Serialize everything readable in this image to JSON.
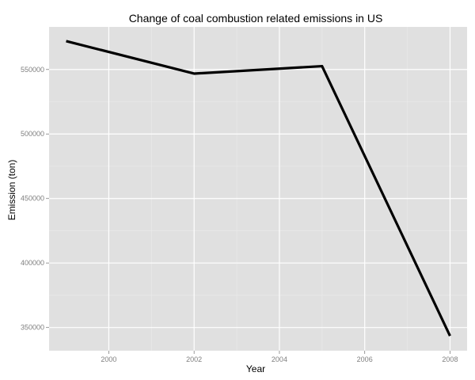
{
  "chart_data": {
    "type": "line",
    "title": "Change of coal combustion related emissions in US",
    "xlabel": "Year",
    "ylabel": "Emission (ton)",
    "x": [
      1999,
      2002,
      2005,
      2008
    ],
    "series": [
      {
        "values": [
          572000,
          546800,
          552600,
          343500
        ]
      }
    ],
    "xlim": [
      1998.6,
      2008.4
    ],
    "ylim": [
      332000,
      583000
    ],
    "xticks": [
      2000,
      2002,
      2004,
      2006,
      2008
    ],
    "xtick_labels": [
      "2000",
      "2002",
      "2004",
      "2006",
      "2008"
    ],
    "yticks": [
      350000,
      400000,
      450000,
      500000,
      550000
    ],
    "ytick_labels": [
      "350000",
      "400000",
      "450000",
      "500000",
      "550000"
    ],
    "grid": true,
    "legend": "none",
    "colors": {
      "panel_background": "#e0e0e0",
      "grid_major": "#ffffff",
      "grid_minor": "#ebebeb",
      "line": "#000000",
      "tick_label": "#7f7f7f"
    }
  }
}
